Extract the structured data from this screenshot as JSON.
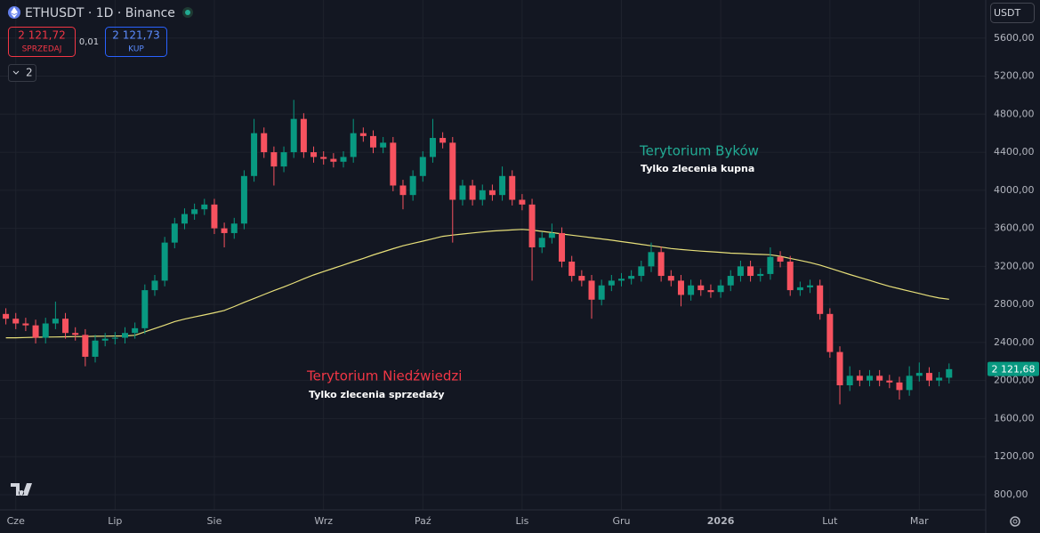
{
  "header": {
    "symbol": "ETHUSDT · 1D · Binance",
    "sell_price": "2 121,72",
    "sell_label": "SPRZEDAJ",
    "spread": "0,01",
    "buy_price": "2 121,73",
    "buy_label": "KUP",
    "indicator_count": "2",
    "currency": "USDT"
  },
  "chart_data": {
    "type": "candlestick",
    "categories": [
      null,
      "Cze",
      null,
      null,
      null,
      null,
      null,
      null,
      null,
      null,
      null,
      "Lip",
      null,
      null,
      null,
      null,
      null,
      null,
      null,
      null,
      null,
      "Sie",
      null,
      null,
      null,
      null,
      null,
      null,
      null,
      null,
      null,
      null,
      "Wrz",
      null,
      null,
      null,
      null,
      null,
      null,
      null,
      null,
      null,
      "Paź",
      null,
      null,
      null,
      null,
      null,
      null,
      null,
      null,
      null,
      "Lis",
      null,
      null,
      null,
      null,
      null,
      null,
      null,
      null,
      null,
      "Gru",
      null,
      null,
      null,
      null,
      null,
      null,
      null,
      null,
      null,
      "2026",
      null,
      null,
      null,
      null,
      null,
      null,
      null,
      null,
      null,
      null,
      "Lut",
      null,
      null,
      null,
      null,
      null,
      null,
      null,
      null,
      "Mar",
      null,
      null,
      null
    ],
    "open": [
      2700,
      2650,
      2600,
      2580,
      2450,
      2600,
      2650,
      2500,
      2480,
      2250,
      2420,
      2440,
      2450,
      2500,
      2550,
      2950,
      3050,
      3450,
      3650,
      3750,
      3800,
      3850,
      3600,
      3550,
      3650,
      4150,
      4600,
      4400,
      4250,
      4400,
      4750,
      4400,
      4350,
      4330,
      4300,
      4350,
      4600,
      4570,
      4450,
      4500,
      4050,
      3950,
      4150,
      4350,
      4550,
      4500,
      3900,
      4050,
      3900,
      4000,
      3950,
      4150,
      3900,
      3850,
      3400,
      3500,
      3550,
      3250,
      3100,
      3050,
      2850,
      3000,
      3050,
      3070,
      3100,
      3200,
      3350,
      3100,
      3050,
      2900,
      3000,
      2950,
      2930,
      3000,
      3100,
      3200,
      3100,
      3120,
      3300,
      3250,
      2950,
      2980,
      3000,
      2700,
      2300,
      1950,
      2050,
      2000,
      2050,
      2000,
      1980,
      1900,
      2050,
      2080,
      2000,
      2030
    ],
    "high": [
      2760,
      2710,
      2660,
      2640,
      2660,
      2830,
      2710,
      2560,
      2540,
      2480,
      2500,
      2510,
      2560,
      2610,
      3010,
      3110,
      3510,
      3710,
      3810,
      3860,
      3910,
      3910,
      3660,
      3710,
      4210,
      4750,
      4660,
      4460,
      4460,
      4950,
      4810,
      4460,
      4410,
      4390,
      4410,
      4750,
      4660,
      4630,
      4560,
      4560,
      4110,
      4210,
      4410,
      4750,
      4610,
      4560,
      4110,
      4110,
      4060,
      4060,
      4250,
      4210,
      3960,
      3910,
      3560,
      3650,
      3610,
      3310,
      3160,
      3110,
      3060,
      3110,
      3130,
      3160,
      3260,
      3450,
      3410,
      3160,
      3110,
      3060,
      3060,
      3010,
      3060,
      3160,
      3260,
      3260,
      3180,
      3400,
      3360,
      3310,
      3040,
      3060,
      3060,
      2760,
      2360,
      2150,
      2110,
      2110,
      2110,
      2060,
      2040,
      2150,
      2190,
      2140,
      2090,
      2180
    ],
    "low": [
      2590,
      2540,
      2520,
      2390,
      2390,
      2540,
      2440,
      2420,
      2150,
      2190,
      2360,
      2380,
      2390,
      2440,
      2490,
      2890,
      2990,
      3390,
      3590,
      3690,
      3740,
      3540,
      3400,
      3490,
      3590,
      4090,
      4340,
      4050,
      4190,
      4340,
      4340,
      4290,
      4270,
      4240,
      4240,
      4290,
      4510,
      4390,
      4390,
      3990,
      3800,
      3890,
      4090,
      4290,
      4440,
      3450,
      3840,
      3840,
      3840,
      3890,
      3890,
      3840,
      3790,
      3050,
      3340,
      3440,
      3190,
      3040,
      2990,
      2650,
      2790,
      2940,
      2990,
      3010,
      3040,
      3140,
      3040,
      2990,
      2780,
      2840,
      2890,
      2870,
      2870,
      2940,
      3040,
      3040,
      3040,
      3060,
      3190,
      2890,
      2890,
      2920,
      2640,
      2240,
      1750,
      1890,
      1940,
      1940,
      1940,
      1920,
      1800,
      1840,
      1990,
      1940,
      1940,
      1970
    ],
    "close": [
      2650,
      2600,
      2580,
      2450,
      2600,
      2650,
      2500,
      2480,
      2250,
      2420,
      2440,
      2450,
      2500,
      2550,
      2950,
      3050,
      3450,
      3650,
      3750,
      3800,
      3850,
      3600,
      3550,
      3650,
      4150,
      4600,
      4400,
      4250,
      4400,
      4750,
      4400,
      4350,
      4330,
      4300,
      4350,
      4600,
      4570,
      4450,
      4500,
      4050,
      3950,
      4150,
      4350,
      4550,
      4500,
      3900,
      4050,
      3900,
      4000,
      3950,
      4150,
      3900,
      3850,
      3400,
      3500,
      3550,
      3250,
      3100,
      3050,
      2850,
      3000,
      3050,
      3070,
      3100,
      3200,
      3350,
      3100,
      3050,
      2900,
      3000,
      2950,
      2930,
      3000,
      3100,
      3200,
      3100,
      3120,
      3300,
      3250,
      2950,
      2980,
      3000,
      2700,
      2300,
      1950,
      2050,
      2000,
      2050,
      2000,
      1980,
      1900,
      2050,
      2080,
      2000,
      2030,
      2120
    ],
    "up_color": "#089981",
    "down_color": "#f7525f",
    "ma": {
      "color": "#e8e07a",
      "values": [
        2450,
        2450,
        2452,
        2455,
        2457,
        2458,
        2460,
        2462,
        2463,
        2465,
        2466,
        2468,
        2469,
        2476,
        2512,
        2547,
        2582,
        2620,
        2646,
        2668,
        2690,
        2712,
        2737,
        2778,
        2822,
        2863,
        2904,
        2945,
        2985,
        3026,
        3070,
        3110,
        3145,
        3180,
        3215,
        3250,
        3284,
        3320,
        3353,
        3386,
        3417,
        3441,
        3465,
        3491,
        3516,
        3529,
        3540,
        3551,
        3562,
        3572,
        3578,
        3583,
        3589,
        3581,
        3568,
        3555,
        3541,
        3528,
        3515,
        3502,
        3489,
        3476,
        3461,
        3447,
        3432,
        3417,
        3403,
        3388,
        3377,
        3369,
        3361,
        3354,
        3347,
        3339,
        3335,
        3330,
        3326,
        3322,
        3306,
        3284,
        3262,
        3240,
        3214,
        3181,
        3148,
        3115,
        3084,
        3053,
        3020,
        2990,
        2965,
        2940,
        2915,
        2889,
        2868,
        2855
      ]
    },
    "ylim": [
      650,
      6000
    ],
    "yticks": [
      {
        "value": 800,
        "label": "800,00"
      },
      {
        "value": 1200,
        "label": "1200,00"
      },
      {
        "value": 1600,
        "label": "1600,00"
      },
      {
        "value": 2000,
        "label": "2000,00"
      },
      {
        "value": 2400,
        "label": "2400,00"
      },
      {
        "value": 2800,
        "label": "2800,00"
      },
      {
        "value": 3200,
        "label": "3200,00"
      },
      {
        "value": 3600,
        "label": "3600,00"
      },
      {
        "value": 4000,
        "label": "4000,00"
      },
      {
        "value": 4400,
        "label": "4400,00"
      },
      {
        "value": 4800,
        "label": "4800,00"
      },
      {
        "value": 5200,
        "label": "5200,00"
      },
      {
        "value": 5600,
        "label": "5600,00"
      }
    ],
    "grid": true,
    "last_price": {
      "value": 2121.68,
      "label": "2 121,68"
    },
    "annotations": [
      {
        "text": "Terytorium Byków",
        "subtext": "Tylko zlecenia kupna",
        "color": "#22ab94"
      },
      {
        "text": "Terytorium Niedźwiedzi",
        "subtext": "Tylko zlecenia sprzedaży",
        "color": "#f23645"
      }
    ]
  }
}
